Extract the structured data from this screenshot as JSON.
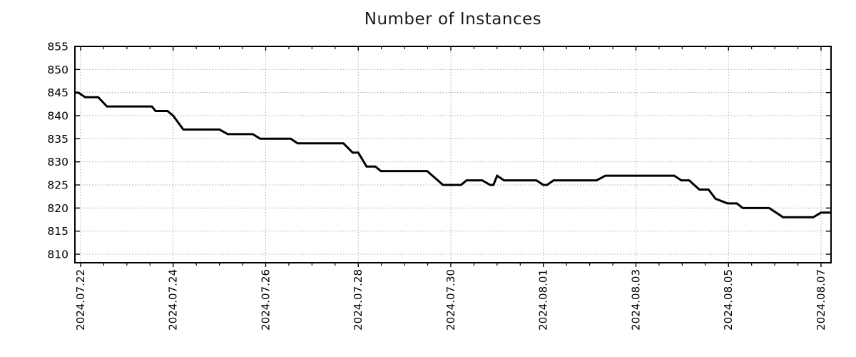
{
  "chart_data": {
    "type": "line",
    "title": "Number of Instances",
    "legend": "none",
    "grid": "dotted",
    "colors": {
      "line": "#000000",
      "grid": "#a9a9a9",
      "axis": "#000000",
      "background": "#ffffff",
      "title": "#1c1c1c"
    },
    "x_axis": {
      "unit": "date",
      "tick_labels": [
        "2024.07.22",
        "2024.07.24",
        "2024.07.26",
        "2024.07.28",
        "2024.07.30",
        "2024.08.01",
        "2024.08.03",
        "2024.08.05",
        "2024.08.07"
      ],
      "tick_positions_days": [
        0,
        2,
        4,
        6,
        8,
        10,
        12,
        14,
        16
      ],
      "minor_tick_interval_days": 0.5,
      "xlim_days": [
        -0.123,
        16.216
      ],
      "label_rotation_deg": -90
    },
    "y_axis": {
      "ticks": [
        855,
        850,
        845,
        840,
        835,
        830,
        825,
        820,
        815,
        810
      ],
      "ylim": [
        808.15,
        855
      ]
    },
    "series": [
      {
        "name": "instances",
        "color": "#000000",
        "points_days_value": [
          [
            -0.12,
            845
          ],
          [
            -0.05,
            845
          ],
          [
            0.1,
            844
          ],
          [
            0.38,
            844
          ],
          [
            0.57,
            842
          ],
          [
            1.54,
            842
          ],
          [
            1.62,
            841
          ],
          [
            1.88,
            841
          ],
          [
            2.0,
            840
          ],
          [
            2.22,
            837
          ],
          [
            3.0,
            837
          ],
          [
            3.18,
            836
          ],
          [
            3.72,
            836
          ],
          [
            3.88,
            835
          ],
          [
            4.54,
            835
          ],
          [
            4.69,
            834
          ],
          [
            5.68,
            834
          ],
          [
            5.88,
            832
          ],
          [
            6.0,
            832
          ],
          [
            6.18,
            829
          ],
          [
            6.37,
            829
          ],
          [
            6.49,
            828
          ],
          [
            7.49,
            828
          ],
          [
            7.83,
            825
          ],
          [
            8.22,
            825
          ],
          [
            8.34,
            826
          ],
          [
            8.68,
            826
          ],
          [
            8.85,
            825
          ],
          [
            8.92,
            825
          ],
          [
            9.0,
            827
          ],
          [
            9.15,
            826
          ],
          [
            9.85,
            826
          ],
          [
            10.0,
            825
          ],
          [
            10.08,
            825
          ],
          [
            10.22,
            826
          ],
          [
            11.15,
            826
          ],
          [
            11.34,
            827
          ],
          [
            12.83,
            827
          ],
          [
            12.98,
            826
          ],
          [
            13.15,
            826
          ],
          [
            13.26,
            825
          ],
          [
            13.37,
            824
          ],
          [
            13.57,
            824
          ],
          [
            13.72,
            822
          ],
          [
            13.98,
            821
          ],
          [
            14.18,
            821
          ],
          [
            14.31,
            820
          ],
          [
            14.88,
            820
          ],
          [
            15.18,
            818
          ],
          [
            15.83,
            818
          ],
          [
            16.0,
            819
          ],
          [
            16.22,
            819
          ]
        ]
      }
    ]
  }
}
